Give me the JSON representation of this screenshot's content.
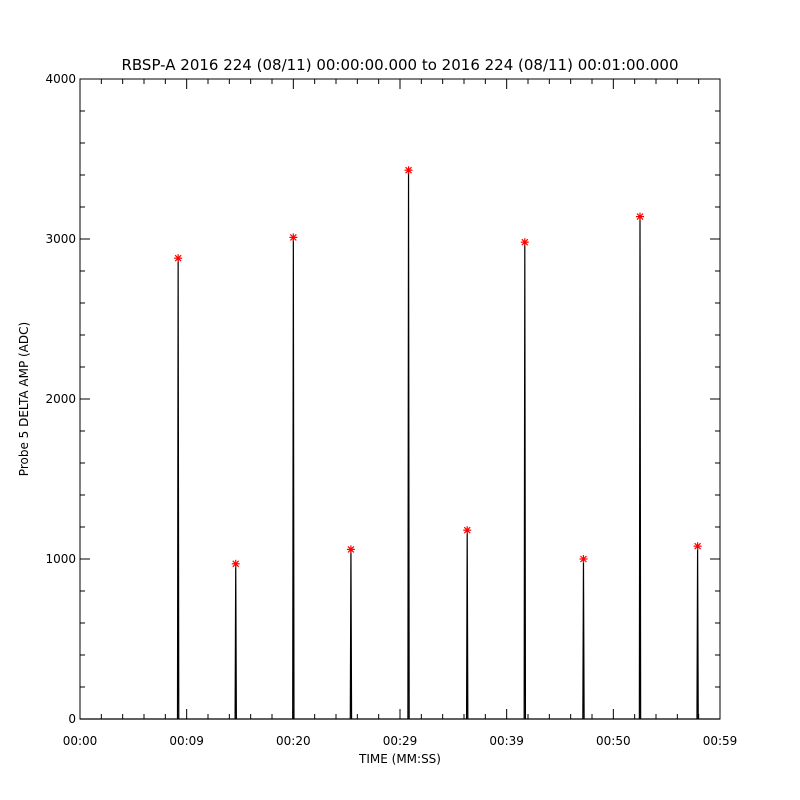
{
  "chart_data": {
    "type": "line",
    "title": "RBSP-A 2016 224 (08/11) 00:00:00.000 to 2016 224 (08/11) 00:01:00.000",
    "xlabel": "TIME (MM:SS)",
    "ylabel": "Probe 5 DELTA AMP (ADC)",
    "xlim": [
      0,
      60
    ],
    "ylim": [
      0,
      4000
    ],
    "xticks": [
      {
        "value": 0,
        "label": "00:00"
      },
      {
        "value": 10,
        "label": "00:09"
      },
      {
        "value": 20,
        "label": "00:20"
      },
      {
        "value": 30,
        "label": "00:29"
      },
      {
        "value": 40,
        "label": "00:39"
      },
      {
        "value": 50,
        "label": "00:50"
      },
      {
        "value": 60,
        "label": "00:59"
      }
    ],
    "yticks": [
      0,
      1000,
      2000,
      3000,
      4000
    ],
    "xminor": 5,
    "yminor": 5,
    "series": [
      {
        "color": "#000000",
        "x": [
          0,
          9.14,
          9.2,
          9.26,
          14.54,
          14.6,
          14.66,
          19.94,
          20.0,
          20.06,
          25.34,
          25.4,
          25.46,
          30.74,
          30.8,
          30.86,
          36.24,
          36.3,
          36.36,
          41.64,
          41.7,
          41.76,
          47.14,
          47.2,
          47.26,
          52.44,
          52.5,
          52.56,
          57.84,
          57.9,
          57.96,
          60
        ],
        "values": [
          0,
          0,
          2880,
          0,
          0,
          970,
          0,
          0,
          3010,
          0,
          0,
          1060,
          0,
          0,
          3430,
          0,
          0,
          1180,
          0,
          0,
          2980,
          0,
          0,
          1000,
          0,
          0,
          3140,
          0,
          0,
          1080,
          0,
          0
        ]
      },
      {
        "color": "#ff0000",
        "marker": "*",
        "x": [
          9.2,
          14.6,
          20.0,
          25.4,
          30.8,
          36.3,
          41.7,
          47.2,
          52.5,
          57.9
        ],
        "values": [
          2880,
          970,
          3010,
          1060,
          3430,
          1180,
          2980,
          1000,
          3140,
          1080
        ]
      }
    ]
  }
}
